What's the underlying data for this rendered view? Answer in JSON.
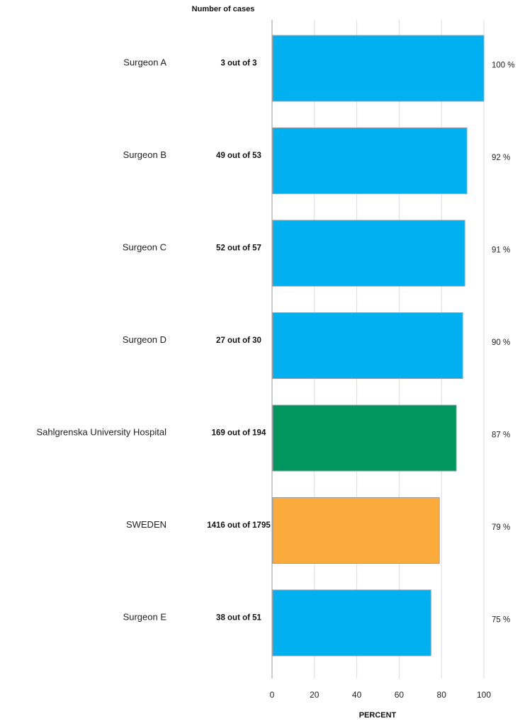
{
  "chart_data": {
    "type": "bar",
    "orientation": "horizontal",
    "count_header": "Number of cases",
    "xlabel": "PERCENT",
    "xlim": [
      0,
      100
    ],
    "x_ticks": [
      "0",
      "20",
      "40",
      "60",
      "80",
      "100"
    ],
    "grid": true,
    "categories": [
      "Surgeon A",
      "Surgeon B",
      "Surgeon C",
      "Surgeon D",
      "Sahlgrenska University Hospital",
      "SWEDEN",
      "Surgeon E"
    ],
    "counts": [
      "3 out of 3",
      "49 out of 53",
      "52 out of 57",
      "27 out of 30",
      "169 out of 194",
      "1416 out of 1795",
      "38 out of 51"
    ],
    "values": [
      100,
      92,
      91,
      90,
      87,
      79,
      75
    ],
    "value_labels": [
      "100 %",
      "92 %",
      "91 %",
      "90 %",
      "87 %",
      "79 %",
      "75 %"
    ],
    "colors": [
      "#00b0f0",
      "#00b0f0",
      "#00b0f0",
      "#00b0f0",
      "#00965e",
      "#fbab3b",
      "#00b0f0"
    ]
  }
}
